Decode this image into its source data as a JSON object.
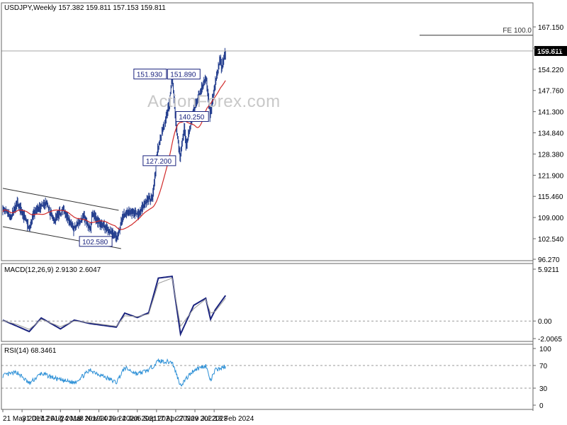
{
  "watermark": "ActionForex.com",
  "chart_data": [
    {
      "type": "bar",
      "style": "ohlc",
      "header": "USDJPY,Weekly  157.382 159.811 157.153 159.811",
      "symbol": "USDJPY",
      "timeframe": "Weekly",
      "last_bar": {
        "open": 157.382,
        "high": 159.811,
        "low": 157.153,
        "close": 159.811
      },
      "last_price_label": "159.811",
      "price_ticks": [
        "167.150",
        "160.680",
        "154.220",
        "147.760",
        "141.300",
        "134.840",
        "128.380",
        "121.900",
        "115.460",
        "109.000",
        "102.540",
        "96.270"
      ],
      "ylim": [
        96.27,
        167.15
      ],
      "x_tick_labels": [
        "21 May 2017",
        "31 Dec 2017",
        "12 Aug 2018",
        "24 Mar 2019",
        "3 Nov 2019",
        "14 Jun 2020",
        "24 Jan 2021",
        "5 Sep 2021",
        "17 Apr 2022",
        "27 Nov 2022",
        "9 Jul 2023",
        "18 Feb 2024"
      ],
      "anchors": [
        {
          "date": "2017-05-21",
          "price": 111.5
        },
        {
          "date": "2017-08-20",
          "price": 109.0
        },
        {
          "date": "2017-11-05",
          "price": 113.5
        },
        {
          "date": "2018-01-28",
          "price": 109.0
        },
        {
          "date": "2018-03-25",
          "price": 105.5
        },
        {
          "date": "2018-05-20",
          "price": 110.5
        },
        {
          "date": "2018-07-15",
          "price": 112.0
        },
        {
          "date": "2018-10-07",
          "price": 113.5
        },
        {
          "date": "2019-01-06",
          "price": 108.0
        },
        {
          "date": "2019-04-21",
          "price": 111.5
        },
        {
          "date": "2019-08-25",
          "price": 105.5
        },
        {
          "date": "2019-12-15",
          "price": 109.5
        },
        {
          "date": "2020-03-08",
          "price": 105.0
        },
        {
          "date": "2020-03-22",
          "price": 110.5
        },
        {
          "date": "2020-06-07",
          "price": 107.5
        },
        {
          "date": "2020-09-06",
          "price": 106.0
        },
        {
          "date": "2021-01-03",
          "price": 102.58
        },
        {
          "date": "2021-03-28",
          "price": 110.0
        },
        {
          "date": "2021-07-04",
          "price": 110.5
        },
        {
          "date": "2021-09-19",
          "price": 110.0
        },
        {
          "date": "2021-12-26",
          "price": 114.5
        },
        {
          "date": "2022-02-27",
          "price": 115.0
        },
        {
          "date": "2022-05-01",
          "price": 130.0
        },
        {
          "date": "2022-09-11",
          "price": 143.5
        },
        {
          "date": "2022-10-16",
          "price": 151.93
        },
        {
          "date": "2022-11-27",
          "price": 138.0
        },
        {
          "date": "2023-01-15",
          "price": 127.2
        },
        {
          "date": "2023-03-05",
          "price": 136.0
        },
        {
          "date": "2023-03-26",
          "price": 130.5
        },
        {
          "date": "2023-06-18",
          "price": 141.5
        },
        {
          "date": "2023-08-27",
          "price": 146.5
        },
        {
          "date": "2023-11-12",
          "price": 151.89
        },
        {
          "date": "2023-12-31",
          "price": 140.25
        },
        {
          "date": "2024-03-03",
          "price": 150.5
        },
        {
          "date": "2024-04-28",
          "price": 158.0
        },
        {
          "date": "2024-05-12",
          "price": 154.5
        },
        {
          "date": "2024-06-30",
          "price": 159.811
        }
      ],
      "moving_average": {
        "color": "#d12b2b"
      },
      "annotations": [
        {
          "text": "151.930",
          "date": "2022-10-16",
          "price": 151.93
        },
        {
          "text": "151.890",
          "date": "2023-11-12",
          "price": 151.89
        },
        {
          "text": "140.250",
          "date": "2023-12-31",
          "price": 140.25
        },
        {
          "text": "127.200",
          "date": "2023-01-15",
          "price": 127.2
        },
        {
          "text": "102.580",
          "date": "2021-01-03",
          "price": 102.58
        }
      ],
      "fe_label": "FE 100.0",
      "fe_level": 164.6,
      "channel": {
        "upper": [
          {
            "date": "2017-05-21",
            "price": 117.9
          },
          {
            "date": "2021-01-31",
            "price": 111.2
          }
        ],
        "lower": [
          {
            "date": "2017-05-21",
            "price": 106.2
          },
          {
            "date": "2021-02-28",
            "price": 99.5
          }
        ]
      },
      "colors": {
        "bars": "#1f3a8c",
        "annotation_text": "#1a237e",
        "grid": "#c0c0c0",
        "axis": "#333333"
      }
    },
    {
      "type": "line",
      "title": "MACD(12,26,9) 2.9130 2.6047",
      "y_ticks": [
        "5.9211",
        "0.00",
        "-2.0065"
      ],
      "ylim": [
        -2.0065,
        5.9211
      ],
      "series": [
        {
          "color": "#1a237e",
          "points": [
            {
              "date": "2017-05-21",
              "value": 0.1
            },
            {
              "date": "2017-11-05",
              "value": -0.6
            },
            {
              "date": "2018-03-25",
              "value": -1.2
            },
            {
              "date": "2018-08-12",
              "value": 0.35
            },
            {
              "date": "2019-03-24",
              "value": -0.9
            },
            {
              "date": "2019-09-01",
              "value": 0.1
            },
            {
              "date": "2020-03-08",
              "value": -0.3
            },
            {
              "date": "2021-01-03",
              "value": -0.7
            },
            {
              "date": "2021-04-11",
              "value": 0.9
            },
            {
              "date": "2021-09-05",
              "value": 0.4
            },
            {
              "date": "2022-01-16",
              "value": 0.95
            },
            {
              "date": "2022-05-08",
              "value": 4.9
            },
            {
              "date": "2022-10-16",
              "value": 5.1
            },
            {
              "date": "2023-01-22",
              "value": -1.5
            },
            {
              "date": "2023-06-25",
              "value": 1.8
            },
            {
              "date": "2023-11-12",
              "value": 2.6
            },
            {
              "date": "2024-01-07",
              "value": 0.2
            },
            {
              "date": "2024-03-03",
              "value": 1.3
            },
            {
              "date": "2024-06-30",
              "value": 2.913
            }
          ]
        },
        {
          "color": "#9a9a9a",
          "points": [
            {
              "date": "2017-05-21",
              "value": 0.05
            },
            {
              "date": "2017-11-05",
              "value": -0.4
            },
            {
              "date": "2018-03-25",
              "value": -0.95
            },
            {
              "date": "2018-08-12",
              "value": 0.2
            },
            {
              "date": "2019-03-24",
              "value": -0.65
            },
            {
              "date": "2019-09-01",
              "value": 0.0
            },
            {
              "date": "2020-03-08",
              "value": -0.2
            },
            {
              "date": "2021-01-03",
              "value": -0.6
            },
            {
              "date": "2021-04-11",
              "value": 0.6
            },
            {
              "date": "2021-09-05",
              "value": 0.5
            },
            {
              "date": "2022-01-16",
              "value": 0.8
            },
            {
              "date": "2022-05-08",
              "value": 4.3
            },
            {
              "date": "2022-10-16",
              "value": 4.9
            },
            {
              "date": "2023-01-22",
              "value": -0.6
            },
            {
              "date": "2023-06-25",
              "value": 1.4
            },
            {
              "date": "2023-11-12",
              "value": 2.5
            },
            {
              "date": "2024-01-07",
              "value": 0.9
            },
            {
              "date": "2024-03-03",
              "value": 1.1
            },
            {
              "date": "2024-06-30",
              "value": 2.6047
            }
          ]
        }
      ]
    },
    {
      "type": "line",
      "title": "RSI(14) 68.3461",
      "y_ticks": [
        "100",
        "70",
        "30",
        "0"
      ],
      "ylim": [
        0,
        100
      ],
      "levels": [
        70,
        30
      ],
      "series": [
        {
          "color": "#2b8fd6",
          "points": [
            {
              "date": "2017-05-21",
              "value": 52
            },
            {
              "date": "2017-11-05",
              "value": 58
            },
            {
              "date": "2018-03-25",
              "value": 38
            },
            {
              "date": "2018-08-12",
              "value": 56
            },
            {
              "date": "2019-03-24",
              "value": 44
            },
            {
              "date": "2019-09-01",
              "value": 40
            },
            {
              "date": "2020-03-08",
              "value": 62
            },
            {
              "date": "2021-01-03",
              "value": 40
            },
            {
              "date": "2021-04-11",
              "value": 66
            },
            {
              "date": "2021-09-05",
              "value": 55
            },
            {
              "date": "2022-01-16",
              "value": 62
            },
            {
              "date": "2022-05-08",
              "value": 78
            },
            {
              "date": "2022-10-16",
              "value": 76
            },
            {
              "date": "2023-01-22",
              "value": 35
            },
            {
              "date": "2023-06-25",
              "value": 62
            },
            {
              "date": "2023-11-12",
              "value": 70
            },
            {
              "date": "2024-01-07",
              "value": 43
            },
            {
              "date": "2024-03-03",
              "value": 62
            },
            {
              "date": "2024-06-30",
              "value": 68.3461
            }
          ]
        }
      ]
    }
  ]
}
